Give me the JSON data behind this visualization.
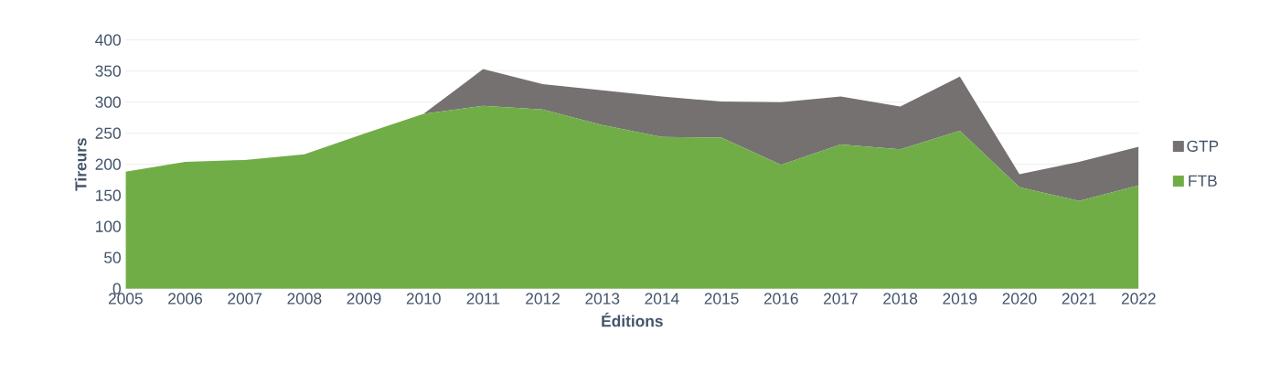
{
  "chart_data": {
    "type": "area",
    "stacked": true,
    "xlabel": "Éditions",
    "ylabel": "Tireurs",
    "categories": [
      "2005",
      "2006",
      "2007",
      "2008",
      "2009",
      "2010",
      "2011",
      "2012",
      "2013",
      "2014",
      "2015",
      "2016",
      "2017",
      "2018",
      "2019",
      "2020",
      "2021",
      "2022"
    ],
    "series": [
      {
        "name": "FTB",
        "color": "#70ad47",
        "values": [
          188,
          204,
          207,
          216,
          249,
          281,
          294,
          288,
          263,
          244,
          243,
          199,
          232,
          224,
          254,
          163,
          141,
          166
        ]
      },
      {
        "name": "GTP",
        "color": "#767171",
        "values": [
          0,
          0,
          0,
          0,
          0,
          0,
          59,
          41,
          56,
          65,
          58,
          101,
          77,
          69,
          87,
          21,
          63,
          62
        ]
      }
    ],
    "ylim": [
      0,
      400
    ],
    "yticks": [
      0,
      50,
      100,
      150,
      200,
      250,
      300,
      350,
      400
    ],
    "grid": "y",
    "legend": "right"
  }
}
